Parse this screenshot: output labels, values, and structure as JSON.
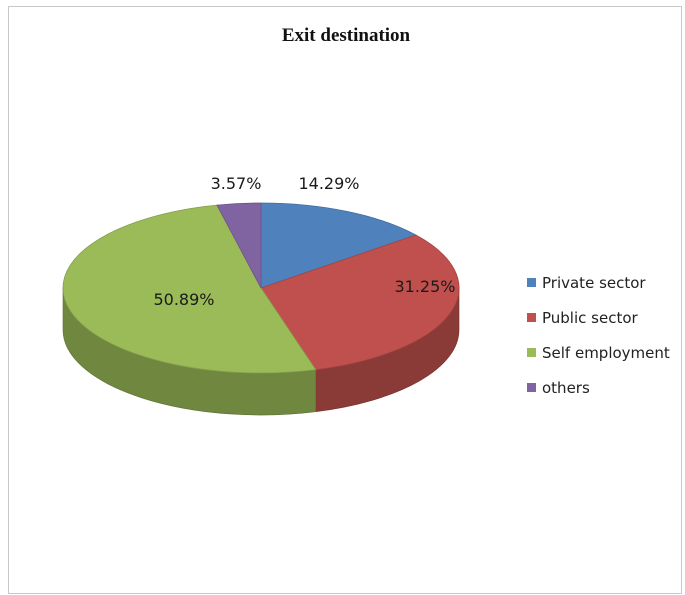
{
  "chart_data": {
    "type": "pie",
    "title": "Exit destination",
    "categories": [
      "Private sector",
      "Public sector",
      "Self employment",
      "others"
    ],
    "values": [
      14.29,
      31.25,
      50.89,
      3.57
    ],
    "value_labels": [
      "14.29%",
      "31.25%",
      "50.89%",
      "3.57%"
    ],
    "colors": [
      "#4f81bd",
      "#c0504d",
      "#9bbb59",
      "#8064a2"
    ],
    "legend_position": "right",
    "style": "3d-pie"
  }
}
